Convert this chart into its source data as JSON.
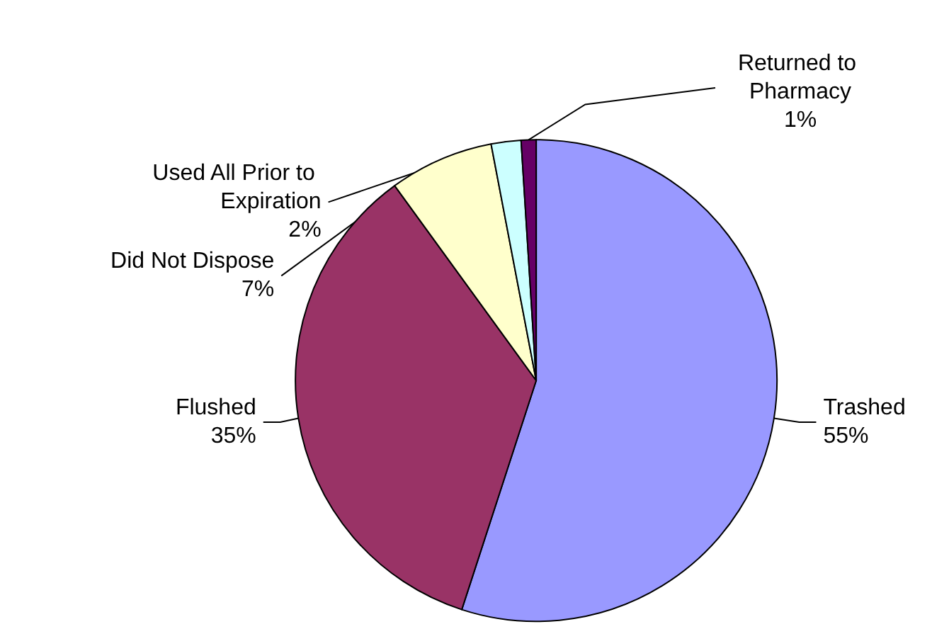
{
  "chart_data": {
    "type": "pie",
    "categories": [
      "Trashed",
      "Flushed",
      "Did Not Dispose",
      "Used All Prior to Expiration",
      "Returned to Pharmacy"
    ],
    "values": [
      55,
      35,
      7,
      2,
      1
    ],
    "colors": [
      "#9999ff",
      "#993366",
      "#ffffcc",
      "#ccffff",
      "#660066"
    ],
    "value_labels": [
      "55%",
      "35%",
      "7%",
      "2%",
      "1%"
    ],
    "legend": false
  }
}
